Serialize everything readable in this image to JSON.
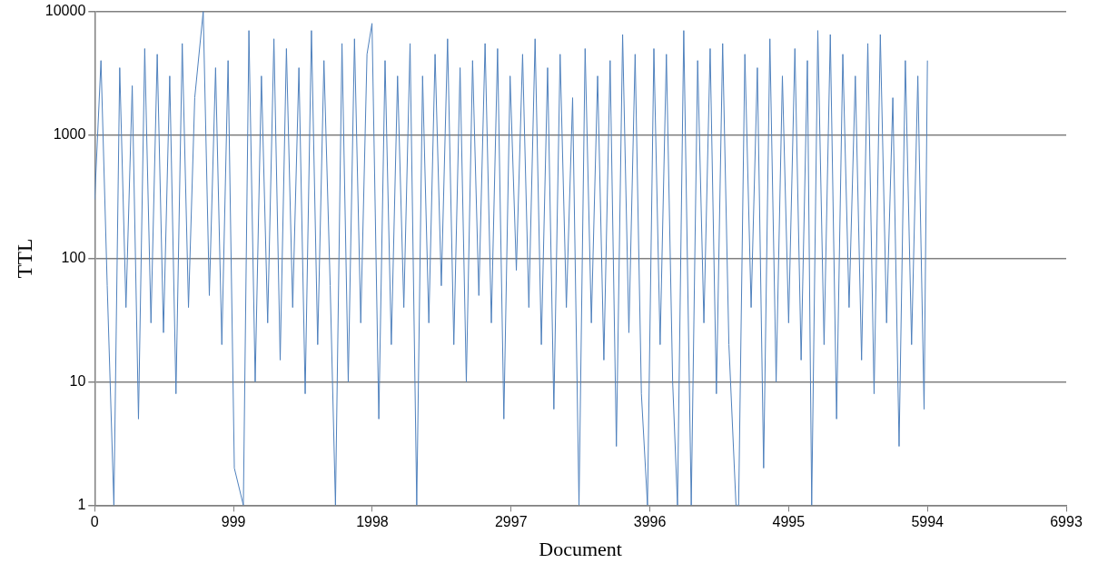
{
  "chart_data": {
    "type": "line",
    "xlabel": "Document",
    "ylabel": "TTL",
    "log": "y",
    "grid": "y",
    "marker": "none",
    "line_style": "solid",
    "xlim": [
      0,
      6993
    ],
    "xticks": [
      0,
      999,
      1998,
      2997,
      3996,
      4995,
      5994,
      6993
    ],
    "ylim": [
      1,
      10000
    ],
    "yticks": [
      1,
      10,
      100,
      1000,
      10000
    ],
    "series": [
      {
        "color": "#4f81bd",
        "x": [
          0,
          45,
          90,
          138,
          180,
          225,
          270,
          315,
          360,
          405,
          450,
          495,
          540,
          585,
          630,
          675,
          720,
          781,
          825,
          870,
          915,
          960,
          1005,
          1070,
          1110,
          1155,
          1200,
          1245,
          1290,
          1335,
          1380,
          1425,
          1470,
          1515,
          1560,
          1605,
          1650,
          1695,
          1733,
          1780,
          1825,
          1870,
          1915,
          1960,
          1996,
          2045,
          2090,
          2135,
          2180,
          2225,
          2270,
          2318,
          2360,
          2405,
          2450,
          2495,
          2540,
          2585,
          2630,
          2675,
          2720,
          2765,
          2810,
          2855,
          2900,
          2945,
          2990,
          3035,
          3080,
          3125,
          3170,
          3215,
          3260,
          3305,
          3350,
          3395,
          3440,
          3486,
          3530,
          3575,
          3620,
          3665,
          3710,
          3755,
          3800,
          3845,
          3890,
          3935,
          3979,
          4025,
          4070,
          4115,
          4160,
          4195,
          4240,
          4294,
          4340,
          4385,
          4430,
          4475,
          4520,
          4565,
          4616,
          4635,
          4680,
          4725,
          4770,
          4815,
          4860,
          4905,
          4950,
          4995,
          5040,
          5085,
          5130,
          5161,
          5205,
          5250,
          5295,
          5340,
          5385,
          5430,
          5475,
          5520,
          5565,
          5610,
          5655,
          5700,
          5745,
          5790,
          5835,
          5880,
          5925,
          5970,
          5994
        ],
        "values": [
          300,
          4000,
          60,
          1,
          3500,
          40,
          2500,
          5,
          5000,
          30,
          4500,
          25,
          3000,
          8,
          5500,
          40,
          2000,
          10000,
          50,
          3500,
          20,
          4000,
          2,
          1,
          7000,
          10,
          3000,
          30,
          6000,
          15,
          5000,
          40,
          3500,
          8,
          7000,
          20,
          4000,
          60,
          1,
          5500,
          10,
          6000,
          30,
          4500,
          8000,
          5,
          4000,
          20,
          3000,
          40,
          5500,
          1,
          3000,
          30,
          4500,
          60,
          6000,
          20,
          3500,
          10,
          4000,
          50,
          5500,
          30,
          5000,
          5,
          3000,
          80,
          4500,
          40,
          6000,
          20,
          3500,
          6,
          4500,
          40,
          2000,
          1,
          5000,
          30,
          3000,
          15,
          4000,
          3,
          6500,
          25,
          4500,
          8,
          1,
          5000,
          20,
          4500,
          10,
          1,
          7000,
          1,
          4000,
          30,
          5000,
          8,
          5500,
          20,
          1,
          1,
          4500,
          40,
          3500,
          2,
          6000,
          10,
          3000,
          30,
          5000,
          15,
          4000,
          1,
          7000,
          20,
          6500,
          5,
          4500,
          40,
          3000,
          15,
          5500,
          8,
          6500,
          30,
          2000,
          3,
          4000,
          20,
          3000,
          6,
          4000
        ]
      }
    ]
  }
}
